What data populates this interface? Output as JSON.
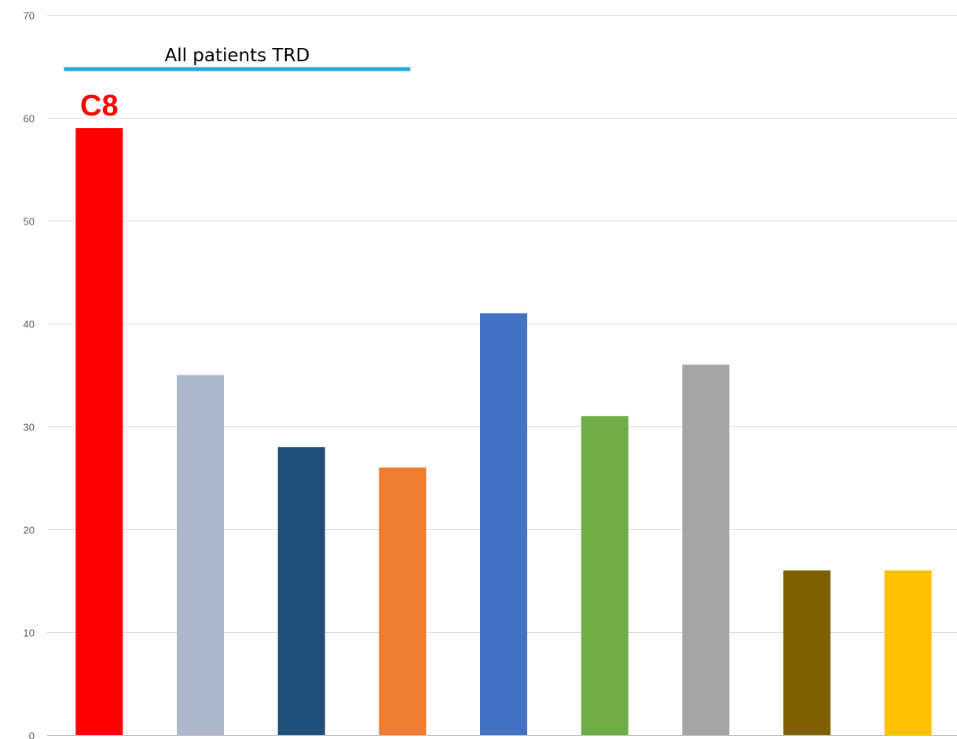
{
  "chart_data": {
    "type": "bar",
    "categories": [
      "C8",
      "",
      "",
      "",
      "",
      "",
      "",
      "",
      ""
    ],
    "values": [
      59,
      35,
      28,
      26,
      41,
      31,
      36,
      16,
      16
    ],
    "colors": [
      "#ff0000",
      "#adb9ca",
      "#1f4e79",
      "#ed7d31",
      "#4472c4",
      "#70ad47",
      "#a5a5a5",
      "#7f6000",
      "#ffc000"
    ],
    "title": "",
    "xlabel": "",
    "ylabel": "",
    "ylim": [
      0,
      70
    ],
    "yticks": [
      "0",
      "10",
      "20",
      "30",
      "40",
      "50",
      "60",
      "70"
    ],
    "grid": true,
    "legend": "none",
    "annotations": [
      {
        "text": "All patients TRD",
        "line_color": "#1fa9dd",
        "spans_categories": [
          0,
          3
        ]
      }
    ],
    "bar_callouts": [
      {
        "category_index": 0,
        "text": "C8",
        "color": "#ff0000"
      }
    ]
  }
}
